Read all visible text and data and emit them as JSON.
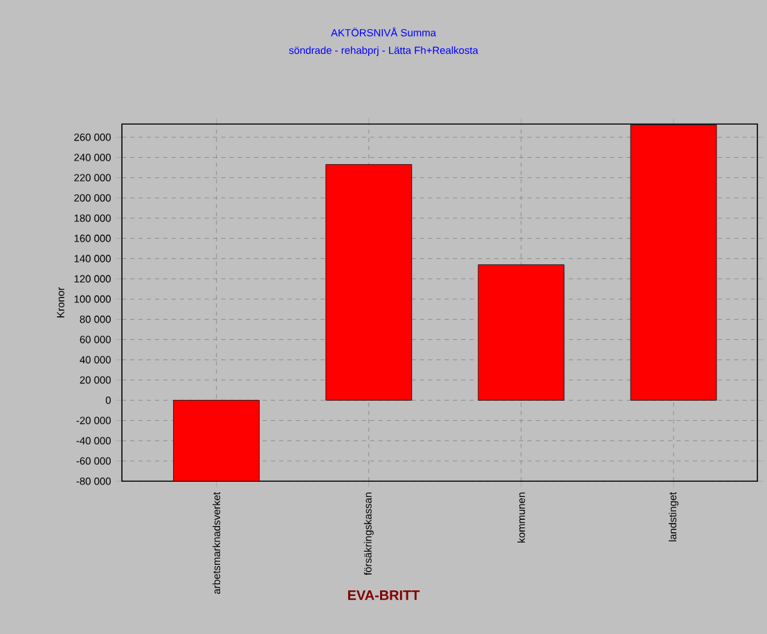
{
  "chart_data": {
    "type": "bar",
    "title": "AKTÖRSNIVÅ Summa",
    "subtitle": "söndrade - rehabprj - Lätta Fh+Realkosta",
    "xlabel": "EVA-BRITT",
    "ylabel": "Kronor",
    "categories": [
      "arbetsmarknadsverket",
      "försäkringskassan",
      "kommunen",
      "landstinget"
    ],
    "values": [
      -80000,
      233000,
      134000,
      272000
    ],
    "color": "#ff0000",
    "ylim": [
      -80000,
      273000
    ],
    "yticks": [
      {
        "value": -80000,
        "label": "-80 000"
      },
      {
        "value": -60000,
        "label": "-60 000"
      },
      {
        "value": -40000,
        "label": "-40 000"
      },
      {
        "value": -20000,
        "label": "-20 000"
      },
      0,
      {
        "value": 20000,
        "label": "20 000"
      },
      {
        "value": 40000,
        "label": "40 000"
      },
      {
        "value": 60000,
        "label": "60 000"
      },
      {
        "value": 80000,
        "label": "80 000"
      },
      {
        "value": 100000,
        "label": "100 000"
      },
      {
        "value": 120000,
        "label": "120 000"
      },
      {
        "value": 140000,
        "label": "140 000"
      },
      {
        "value": 160000,
        "label": "160 000"
      },
      {
        "value": 180000,
        "label": "180 000"
      },
      {
        "value": 200000,
        "label": "200 000"
      },
      {
        "value": 220000,
        "label": "220 000"
      },
      {
        "value": 240000,
        "label": "240 000"
      },
      {
        "value": 260000,
        "label": "260 000"
      }
    ],
    "grid": true
  }
}
